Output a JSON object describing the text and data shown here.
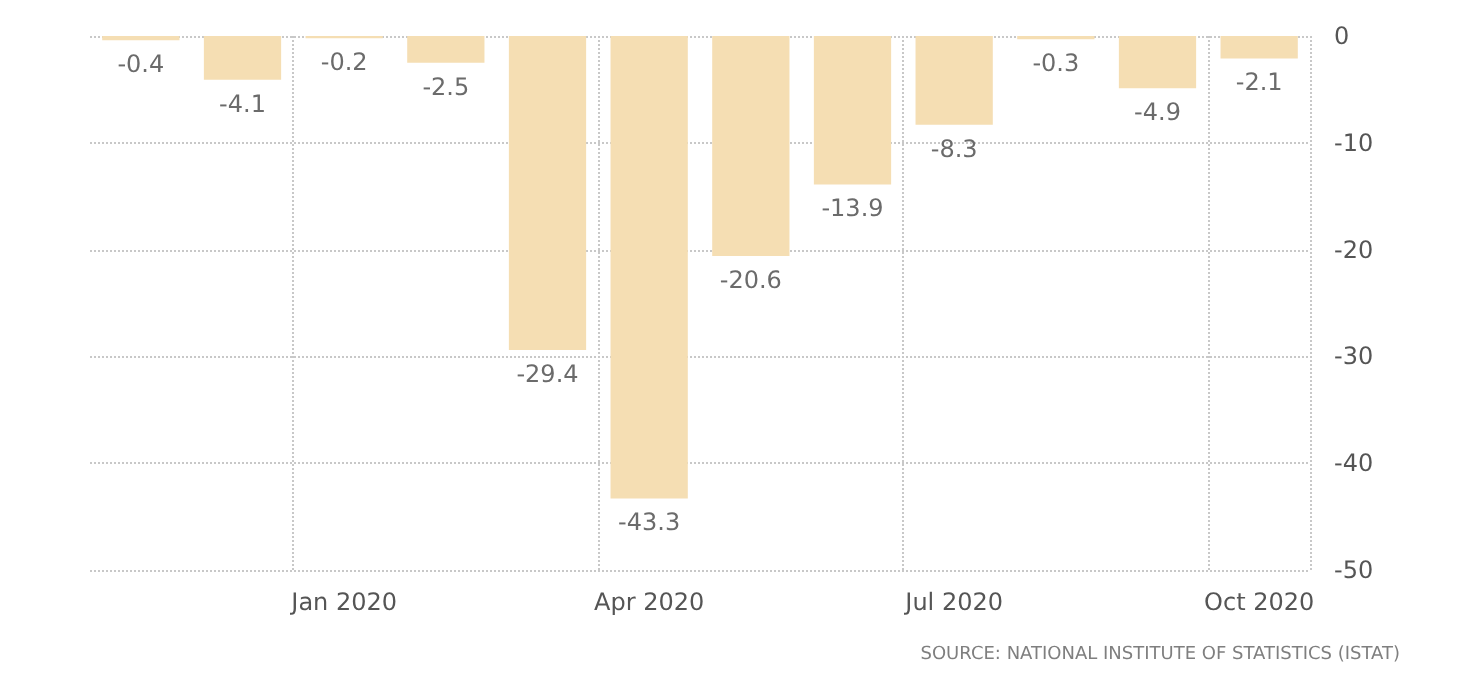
{
  "chart_data": {
    "type": "bar",
    "categories": [
      null,
      null,
      "Jan 2020",
      null,
      null,
      "Apr 2020",
      null,
      null,
      "Jul 2020",
      null,
      null,
      "Oct 2020"
    ],
    "values": [
      -0.4,
      -4.1,
      -0.2,
      -2.5,
      -29.4,
      -43.3,
      -20.6,
      -13.9,
      -8.3,
      -0.3,
      -4.9,
      -2.1
    ],
    "color": "#f5deb3",
    "ylim": [
      -50,
      0
    ],
    "yticks": [
      0,
      -10,
      -20,
      -30,
      -40,
      -50
    ],
    "grid": true,
    "data_labels": true,
    "annotations": [
      "SOURCE: NATIONAL INSTITUTE OF STATISTICS (ISTAT)"
    ]
  }
}
